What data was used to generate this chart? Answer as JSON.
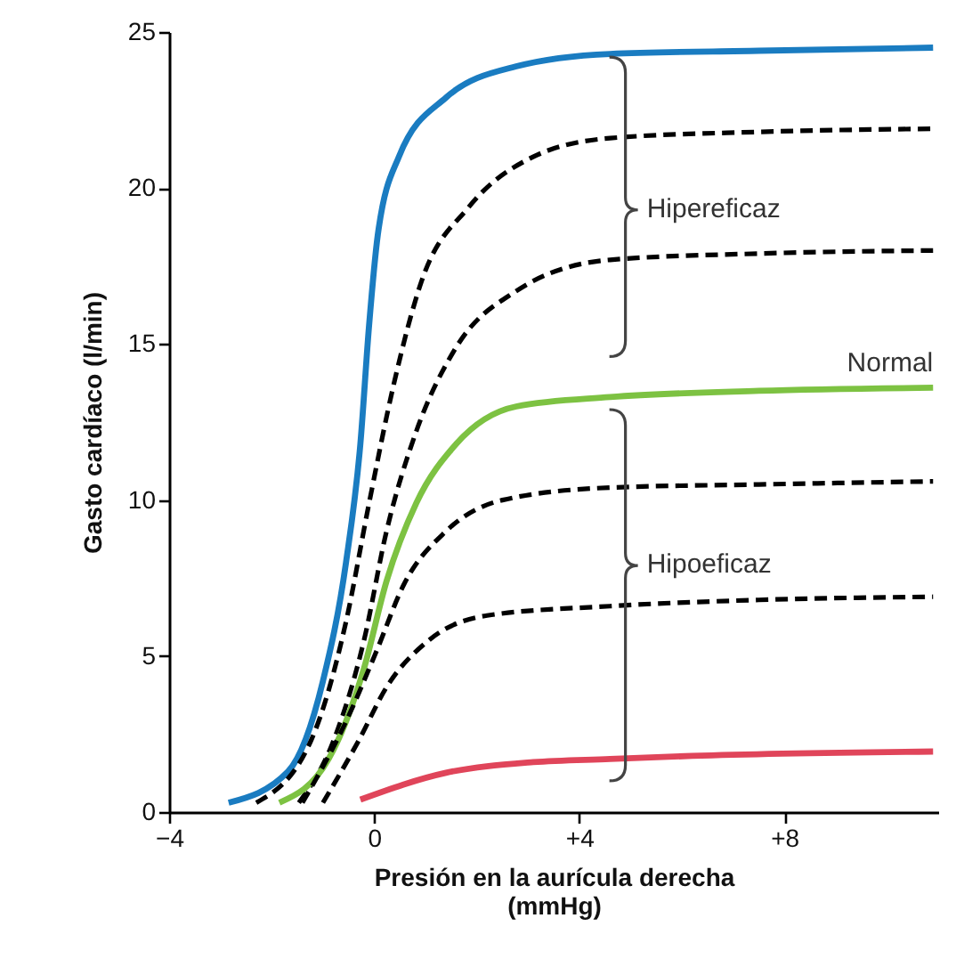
{
  "chart_data": {
    "type": "line",
    "xlabel": "Presión en la aurícula derecha (mmHg)",
    "ylabel": "Gasto cardíaco (l/min)",
    "xlim": [
      -4,
      11
    ],
    "ylim": [
      0,
      25
    ],
    "xticks": [
      {
        "value": -4,
        "label": "−4"
      },
      0,
      {
        "value": 4,
        "label": "+4"
      },
      {
        "value": 8,
        "label": "+8"
      }
    ],
    "yticks": [
      0,
      5,
      10,
      15,
      20,
      25
    ],
    "grid": false,
    "series": [
      {
        "color": "#1a7cc1",
        "line_style": "solid",
        "x": [
          -2.84,
          -1.68,
          -1.0,
          -0.55,
          -0.27,
          -0.1,
          0.07,
          0.48,
          1.4,
          2.77,
          4.6,
          7.5,
          10.9
        ],
        "values": [
          0.3,
          1.3,
          4.2,
          8,
          11.8,
          15.6,
          18.5,
          21,
          22.9,
          23.9,
          24.3,
          24.4,
          24.5
        ]
      },
      {
        "color": "#000000",
        "line_style": "dashed",
        "x": [
          -2.3,
          -1.23,
          -0.55,
          -0.1,
          0.38,
          0.92,
          1.85,
          3.1,
          4.6,
          7.5,
          10.9
        ],
        "values": [
          0.3,
          2.3,
          6.1,
          9.9,
          13.7,
          17,
          19.4,
          21,
          21.6,
          21.8,
          21.9
        ]
      },
      {
        "color": "#000000",
        "line_style": "dashed",
        "x": [
          -1.47,
          -0.79,
          -0.2,
          0.24,
          0.82,
          1.6,
          2.77,
          4.6,
          7.5,
          10.9
        ],
        "values": [
          0.3,
          2.3,
          5.5,
          9,
          12.2,
          14.9,
          16.7,
          17.7,
          17.9,
          18.0
        ]
      },
      {
        "name": "Normal",
        "color": "#7dc242",
        "line_style": "solid",
        "x": [
          -1.85,
          -0.89,
          -0.2,
          0.24,
          0.82,
          1.6,
          2.77,
          4.6,
          7.5,
          10.9
        ],
        "values": [
          0.3,
          1.7,
          4.6,
          7.4,
          9.9,
          11.8,
          13,
          13.3,
          13.5,
          13.6
        ]
      },
      {
        "color": "#000000",
        "line_style": "dashed",
        "x": [
          -1.4,
          -0.55,
          0.03,
          0.58,
          1.4,
          2.5,
          4.6,
          7.5,
          10.9
        ],
        "values": [
          0.3,
          2.9,
          5.1,
          7.3,
          9.0,
          10,
          10.4,
          10.5,
          10.6
        ]
      },
      {
        "color": "#000000",
        "line_style": "dashed",
        "x": [
          -1.0,
          -0.3,
          0.24,
          1.06,
          2.2,
          4.6,
          7.5,
          10.9
        ],
        "values": [
          0.3,
          2.3,
          4,
          5.5,
          6.3,
          6.6,
          6.8,
          6.9
        ]
      },
      {
        "color": "#e0455a",
        "line_style": "solid",
        "x": [
          -0.27,
          1.4,
          3.1,
          4.6,
          6.2,
          10.9
        ],
        "values": [
          0.4,
          1.26,
          1.6,
          1.7,
          1.8,
          1.94
        ]
      }
    ],
    "annotations": [
      "Hipereficaz",
      "Hipoeficaz"
    ]
  }
}
